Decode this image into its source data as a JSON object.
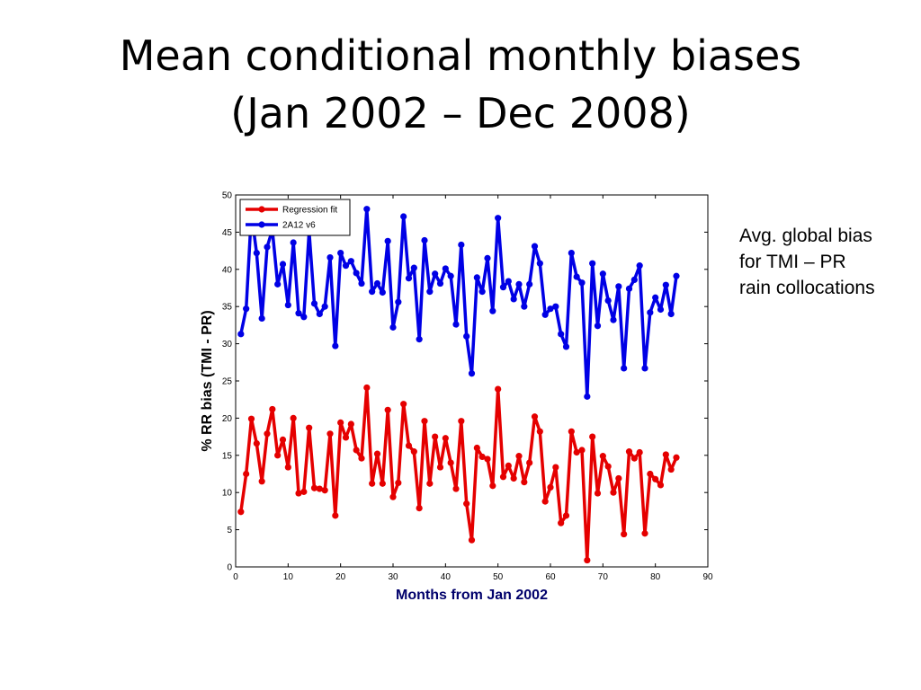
{
  "slide": {
    "title_line1": "Mean conditional monthly biases",
    "title_line2": "(Jan 2002 – Dec 2008)",
    "note_line1": "Avg. global bias",
    "note_line2": "for TMI – PR",
    "note_line3": "rain collocations"
  },
  "chart_data": {
    "type": "line",
    "title": "",
    "xlabel": "Months from Jan 2002",
    "ylabel": "% RR bias (TMI - PR)",
    "xlim": [
      0,
      90
    ],
    "ylim": [
      0,
      50
    ],
    "xticks": [
      0,
      10,
      20,
      30,
      40,
      50,
      60,
      70,
      80,
      90
    ],
    "yticks": [
      0,
      5,
      10,
      15,
      20,
      25,
      30,
      35,
      40,
      45,
      50
    ],
    "grid": false,
    "legend_position": "top-left",
    "x": [
      1,
      2,
      3,
      4,
      5,
      6,
      7,
      8,
      9,
      10,
      11,
      12,
      13,
      14,
      15,
      16,
      17,
      18,
      19,
      20,
      21,
      22,
      23,
      24,
      25,
      26,
      27,
      28,
      29,
      30,
      31,
      32,
      33,
      34,
      35,
      36,
      37,
      38,
      39,
      40,
      41,
      42,
      43,
      44,
      45,
      46,
      47,
      48,
      49,
      50,
      51,
      52,
      53,
      54,
      55,
      56,
      57,
      58,
      59,
      60,
      61,
      62,
      63,
      64,
      65,
      66,
      67,
      68,
      69,
      70,
      71,
      72,
      73,
      74,
      75,
      76,
      77,
      78,
      79,
      80,
      81,
      82,
      83,
      84
    ],
    "series": [
      {
        "name": "Regression fit",
        "color": "#e50000",
        "values": [
          7.4,
          12.5,
          19.9,
          16.6,
          11.5,
          17.9,
          21.2,
          15.0,
          17.1,
          13.4,
          20.0,
          9.9,
          10.1,
          18.7,
          10.6,
          10.5,
          10.3,
          17.9,
          6.9,
          19.4,
          17.4,
          19.2,
          15.7,
          14.6,
          24.1,
          11.2,
          15.2,
          11.2,
          21.1,
          9.4,
          11.3,
          21.9,
          16.3,
          15.5,
          7.9,
          19.6,
          11.2,
          17.5,
          13.4,
          17.3,
          14.0,
          10.5,
          19.6,
          8.5,
          3.6,
          16.0,
          14.8,
          14.5,
          10.9,
          23.9,
          12.1,
          13.6,
          11.9,
          14.9,
          11.4,
          14.0,
          20.2,
          18.2,
          8.8,
          10.7,
          13.4,
          5.9,
          6.9,
          18.2,
          15.4,
          15.7,
          0.9,
          17.5,
          9.9,
          14.9,
          13.5,
          10.0,
          11.9,
          4.4,
          15.5,
          14.6,
          15.4,
          4.5,
          12.5,
          11.8,
          11.0,
          15.1,
          13.1,
          14.7
        ]
      },
      {
        "name": "2A12 v6",
        "color": "#0000e5",
        "values": [
          31.3,
          34.7,
          47.6,
          42.2,
          33.4,
          43.0,
          45.3,
          38.0,
          40.7,
          35.2,
          43.6,
          34.1,
          33.6,
          45.1,
          35.4,
          34.0,
          35.0,
          41.6,
          29.7,
          42.2,
          40.5,
          41.1,
          39.5,
          38.1,
          48.1,
          37.0,
          38.1,
          36.9,
          43.8,
          32.2,
          35.6,
          47.1,
          38.8,
          40.2,
          30.6,
          43.9,
          37.0,
          39.4,
          38.1,
          40.1,
          39.1,
          32.6,
          43.3,
          31.0,
          26.0,
          38.9,
          37.0,
          41.5,
          34.4,
          46.9,
          37.6,
          38.4,
          36.0,
          38.0,
          35.0,
          38.0,
          43.1,
          40.8,
          33.9,
          34.7,
          35.0,
          31.3,
          29.6,
          42.2,
          39.0,
          38.2,
          22.9,
          40.8,
          32.4,
          39.4,
          35.8,
          33.2,
          37.7,
          26.7,
          37.4,
          38.6,
          40.5,
          26.7,
          34.2,
          36.2,
          34.6,
          37.9,
          34.0,
          39.1
        ]
      }
    ]
  }
}
